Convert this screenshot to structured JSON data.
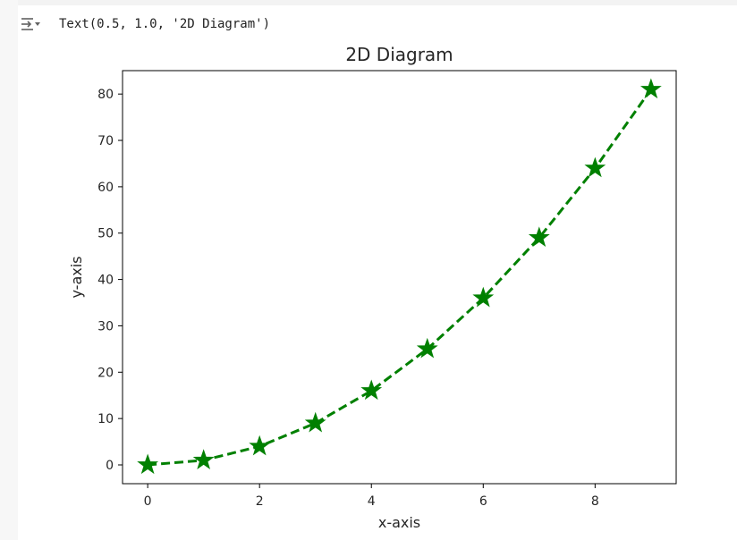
{
  "output": {
    "toggle_icon": "output-collapse-icon",
    "text": "Text(0.5, 1.0, '2D Diagram')"
  },
  "chart_data": {
    "type": "line",
    "title": "2D Diagram",
    "xlabel": "x-axis",
    "ylabel": "y-axis",
    "x": [
      0,
      1,
      2,
      3,
      4,
      5,
      6,
      7,
      8,
      9
    ],
    "series": [
      {
        "values": [
          0,
          1,
          4,
          9,
          16,
          25,
          36,
          49,
          64,
          81
        ],
        "color": "#008000",
        "linestyle": "dashed",
        "marker": "star"
      }
    ],
    "xlim": [
      -0.45,
      9.45
    ],
    "ylim": [
      -4.05,
      85.05
    ],
    "xticks": [
      "0",
      "2",
      "4",
      "6",
      "8"
    ],
    "yticks": [
      "0",
      "10",
      "20",
      "30",
      "40",
      "50",
      "60",
      "70",
      "80"
    ],
    "grid": false,
    "legend": "none"
  }
}
